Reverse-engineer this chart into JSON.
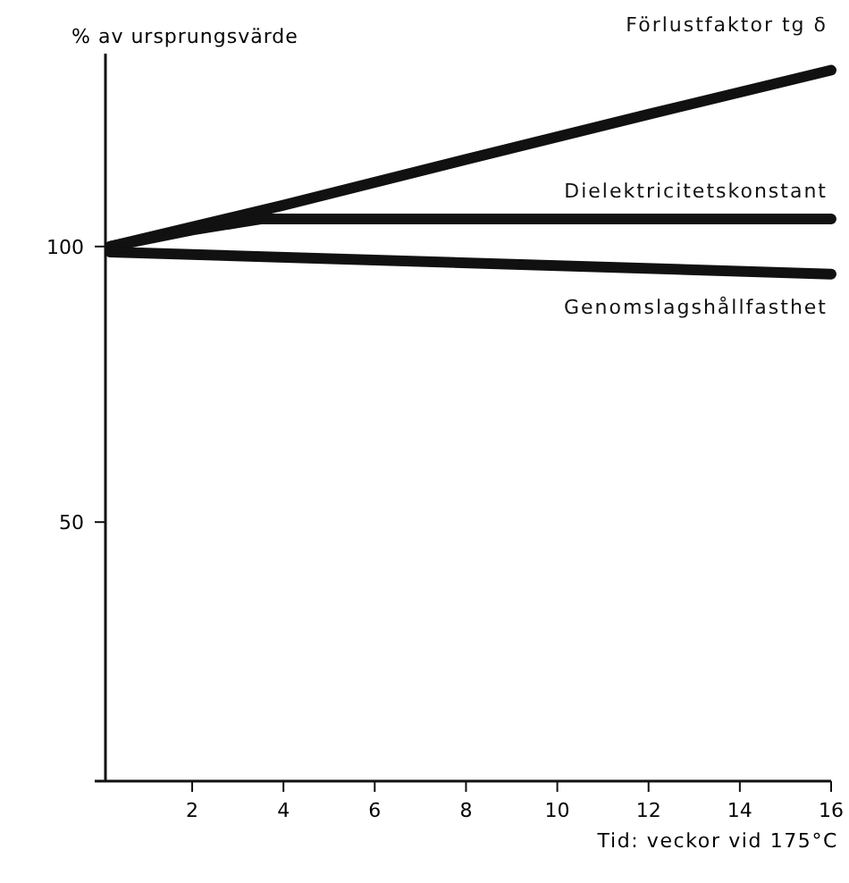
{
  "chart_data": {
    "type": "line",
    "xlabel": "Tid: veckor vid 175°C",
    "ylabel": "% av ursprungsvärde",
    "xlim": [
      0.1,
      16
    ],
    "xticks": [
      2,
      4,
      6,
      8,
      10,
      12,
      14,
      16
    ],
    "ylim": [
      3,
      135
    ],
    "yticks": [
      50,
      100
    ],
    "marker": "none",
    "series": [
      {
        "name": "Förlustfaktor tg δ",
        "color": "#111111",
        "x": [
          0.2,
          4,
          8,
          12,
          16
        ],
        "values": [
          100,
          107.5,
          115.8,
          124,
          132
        ]
      },
      {
        "name": "Dielektricitetskonstant",
        "color": "#111111",
        "x": [
          0.2,
          2,
          3.5,
          16
        ],
        "values": [
          100,
          103,
          105,
          105
        ]
      },
      {
        "name": "Genomslagshållfasthet",
        "color": "#111111",
        "x": [
          0.2,
          16
        ],
        "values": [
          99,
          95
        ]
      }
    ]
  }
}
